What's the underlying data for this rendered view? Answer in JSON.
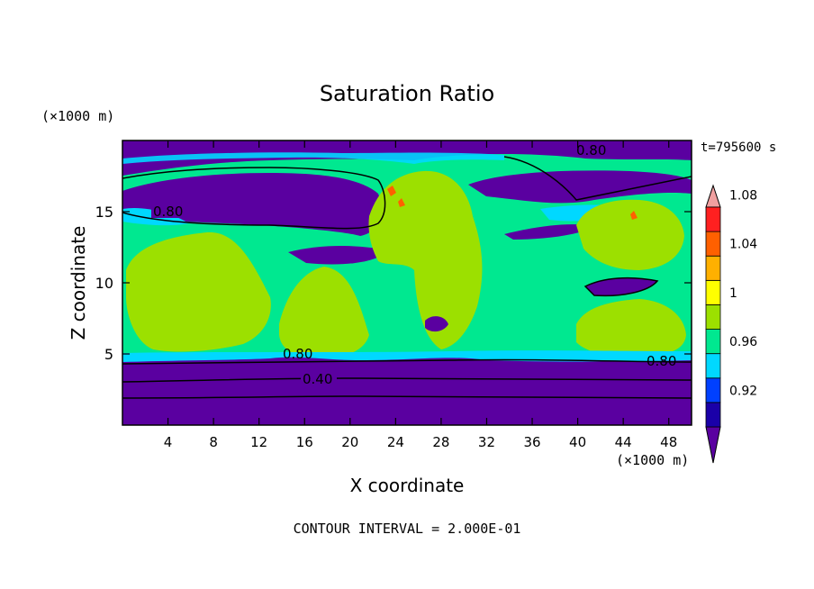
{
  "chart_data": {
    "type": "heatmap",
    "title": "Saturation Ratio",
    "time_label": "t=795600 s",
    "xlabel": "X coordinate",
    "ylabel": "Z coordinate",
    "x_unit": "(×1000 m)",
    "y_unit": "(×1000 m)",
    "xlim": [
      0,
      50
    ],
    "ylim": [
      0,
      20
    ],
    "x_ticks": [
      4,
      8,
      12,
      16,
      20,
      24,
      28,
      32,
      36,
      40,
      44,
      48
    ],
    "y_ticks": [
      5,
      10,
      15
    ],
    "footer": "CONTOUR INTERVAL = 2.000E-01",
    "colorbar": {
      "label_values": [
        "0.92",
        "0.96",
        "1",
        "1.04",
        "1.08"
      ],
      "colors": [
        "#5a00a0",
        "#1a00a8",
        "#0040ff",
        "#00d8ff",
        "#00e890",
        "#9ce000",
        "#ffff00",
        "#ffb000",
        "#ff6000",
        "#ff2020",
        "#f0a0a0"
      ]
    },
    "contour_labels": [
      "0.80",
      "0.80",
      "0.80",
      "0.80",
      "0.40"
    ]
  }
}
